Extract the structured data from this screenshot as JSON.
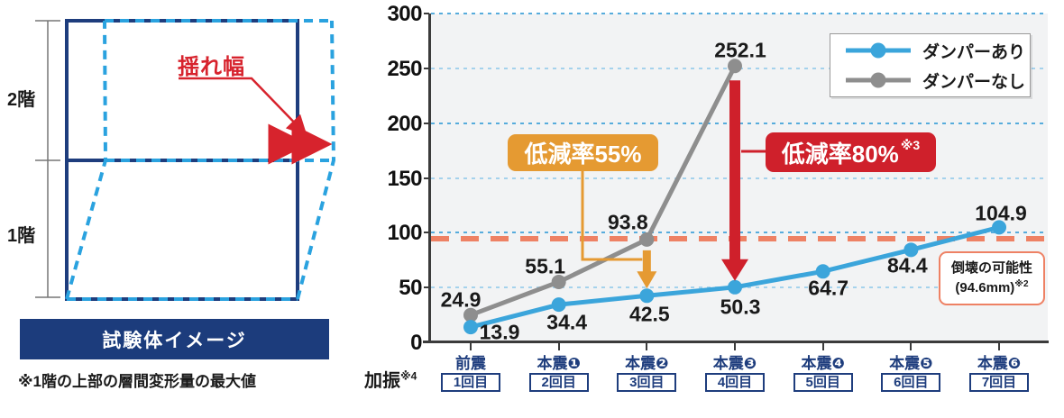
{
  "left_panel": {
    "floor2_label": "2階",
    "floor1_label": "1階",
    "sway_label": "揺れ幅",
    "caption": "試験体イメージ",
    "footnote": "※1階の上部の層間変形量の最大値"
  },
  "chart_data": {
    "type": "line",
    "title": "",
    "categories": [
      "前震",
      "本震❶",
      "本震❷",
      "本震❸",
      "本震❹",
      "本震❺",
      "本震❻"
    ],
    "category_runs": [
      "1回目",
      "2回目",
      "3回目",
      "4回目",
      "5回目",
      "6回目",
      "7回目"
    ],
    "x_axis_label": "加振",
    "x_axis_label_sup": "※4",
    "ylim": [
      0,
      300
    ],
    "ytick_step": 50,
    "grid": true,
    "legend_position": "top-right",
    "series": [
      {
        "name": "ダンパーあり",
        "color": "#3BA5DB",
        "values": [
          13.9,
          34.4,
          42.5,
          50.3,
          64.7,
          84.4,
          104.9
        ]
      },
      {
        "name": "ダンパーなし",
        "color": "#8E8E8E",
        "values": [
          24.9,
          55.1,
          93.8,
          252.1
        ]
      }
    ],
    "threshold_line": {
      "value": 94.6,
      "color": "#EE8164",
      "label_line1": "倒壊の可能性",
      "label_line2": "(94.6mm)",
      "label_sup": "※2"
    },
    "annotations": [
      {
        "text": "低減率55%",
        "sup": "",
        "color": "#E59A32"
      },
      {
        "text": "低減率80%",
        "sup": "※3",
        "color": "#CF202B"
      }
    ]
  },
  "colors": {
    "navy": "#1E3D7D",
    "diagram_dashed_blue": "#2AA2DF",
    "red": "#D7232D",
    "plot_background": "#F2F3F4",
    "grid_blue": "#57ACDC"
  }
}
